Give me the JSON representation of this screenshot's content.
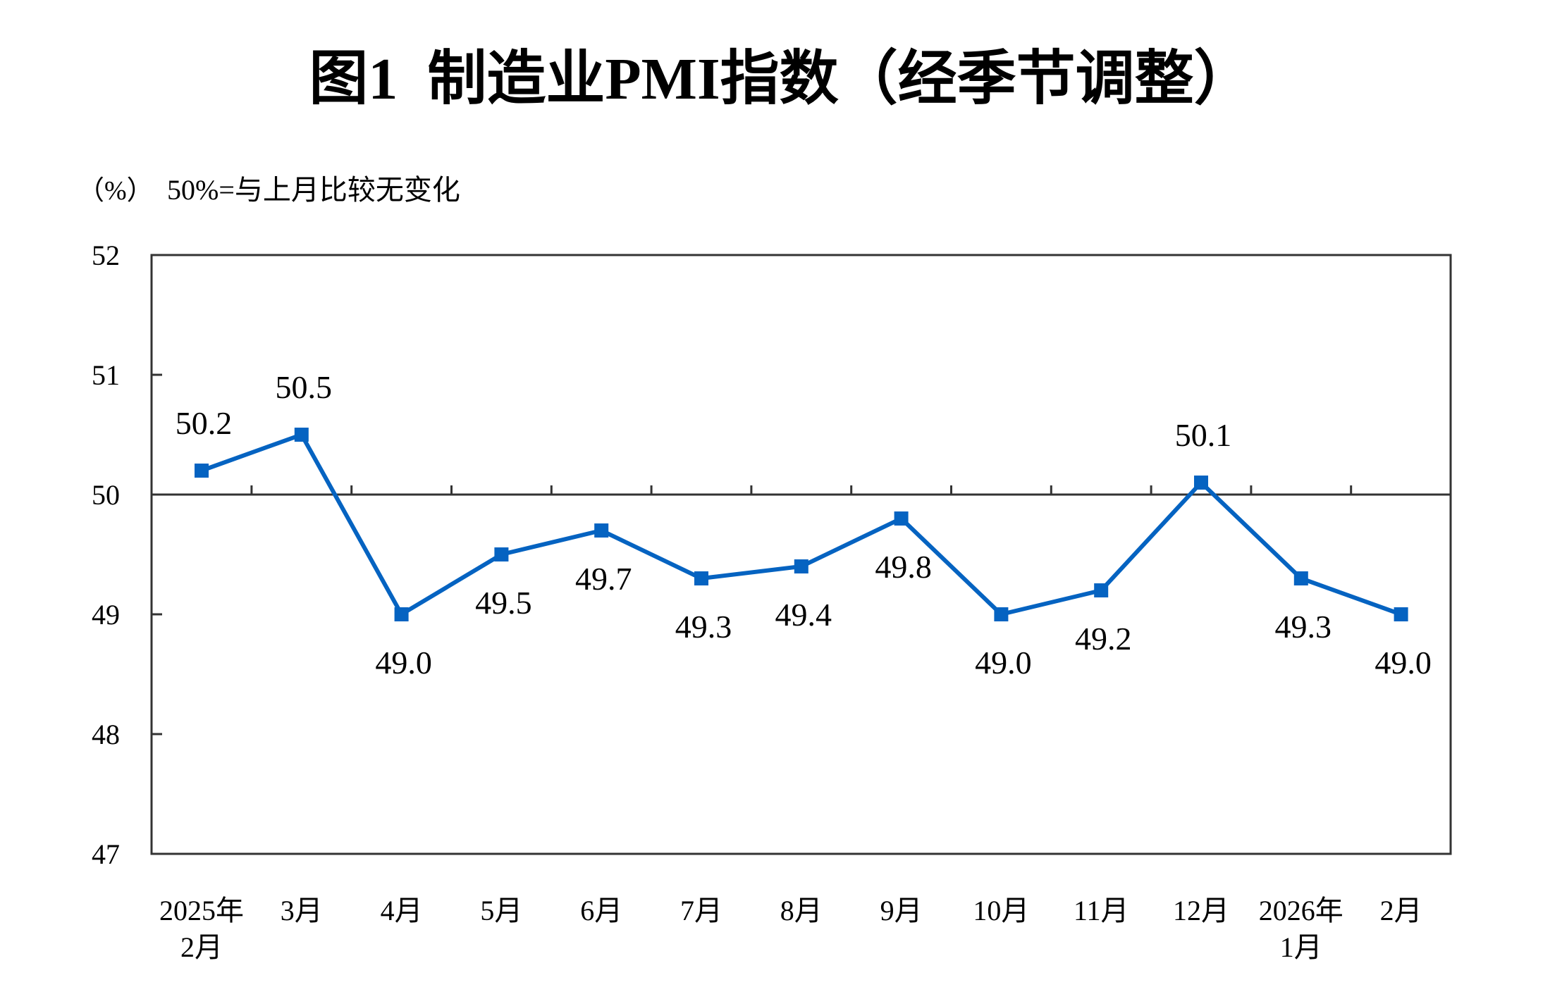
{
  "chart_data": {
    "type": "line",
    "title": "图1  制造业PMI指数（经季节调整）",
    "ylabel": "（%）",
    "annotation": "50%=与上月比较无变化",
    "categories": [
      [
        "2025年",
        "2月"
      ],
      [
        "3月"
      ],
      [
        "4月"
      ],
      [
        "5月"
      ],
      [
        "6月"
      ],
      [
        "7月"
      ],
      [
        "8月"
      ],
      [
        "9月"
      ],
      [
        "10月"
      ],
      [
        "11月"
      ],
      [
        "12月"
      ],
      [
        "2026年",
        "1月"
      ],
      [
        "2月"
      ]
    ],
    "series": [
      {
        "values": [
          50.2,
          50.5,
          49.0,
          49.5,
          49.7,
          49.3,
          49.4,
          49.8,
          49.0,
          49.2,
          50.1,
          49.3,
          49.0
        ],
        "data_labels": [
          "50.2",
          "50.5",
          "49.0",
          "49.5",
          "49.7",
          "49.3",
          "49.4",
          "49.8",
          "49.0",
          "49.2",
          "50.1",
          "49.3",
          "49.0"
        ],
        "color": "#0563C1"
      }
    ],
    "ylim": [
      47,
      52
    ],
    "yticks": [
      "47",
      "48",
      "49",
      "50",
      "51",
      "52"
    ],
    "reference_line": 50,
    "grid": false,
    "legend": "none"
  }
}
